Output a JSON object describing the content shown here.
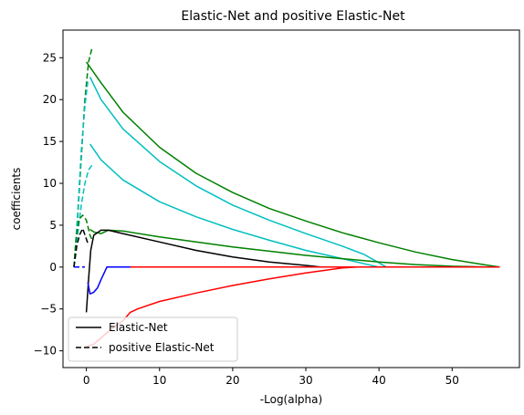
{
  "chart_data": {
    "type": "line",
    "title": "Elastic-Net and positive Elastic-Net",
    "xlabel": "-Log(alpha)",
    "ylabel": "coefficients",
    "xlim": [
      -3.2,
      59.2
    ],
    "ylim": [
      -12,
      28.3
    ],
    "xticks": [
      0,
      10,
      20,
      30,
      40,
      50
    ],
    "yticks": [
      -10,
      -5,
      0,
      5,
      10,
      15,
      20,
      25
    ],
    "grid": false,
    "legend": {
      "placement": "lower-left",
      "entries": [
        {
          "label": "Elastic-Net",
          "dash": "solid"
        },
        {
          "label": "positive Elastic-Net",
          "dash": "dashed"
        }
      ]
    },
    "series": [
      {
        "color": "#008000",
        "dash": "solid",
        "points": [
          [
            0,
            24.5
          ],
          [
            2,
            22
          ],
          [
            5,
            18.5
          ],
          [
            10,
            14.3
          ],
          [
            15,
            11.2
          ],
          [
            20,
            8.9
          ],
          [
            25,
            7.0
          ],
          [
            30,
            5.5
          ],
          [
            35,
            4.1
          ],
          [
            40,
            2.9
          ],
          [
            45,
            1.8
          ],
          [
            50,
            0.9
          ],
          [
            55,
            0.2
          ],
          [
            56.5,
            0
          ]
        ]
      },
      {
        "color": "#00BFBF",
        "dash": "solid",
        "points": [
          [
            0.5,
            22.7
          ],
          [
            2,
            20
          ],
          [
            5,
            16.5
          ],
          [
            10,
            12.6
          ],
          [
            15,
            9.7
          ],
          [
            20,
            7.4
          ],
          [
            25,
            5.6
          ],
          [
            30,
            4.0
          ],
          [
            35,
            2.5
          ],
          [
            38,
            1.5
          ],
          [
            40,
            0.5
          ],
          [
            41,
            0
          ]
        ]
      },
      {
        "color": "#00BFBF",
        "dash": "solid",
        "points": [
          [
            0.5,
            14.7
          ],
          [
            2,
            12.8
          ],
          [
            5,
            10.4
          ],
          [
            10,
            7.8
          ],
          [
            15,
            6.0
          ],
          [
            20,
            4.5
          ],
          [
            25,
            3.2
          ],
          [
            30,
            2.0
          ],
          [
            35,
            1.0
          ],
          [
            38,
            0.4
          ],
          [
            40,
            0
          ]
        ]
      },
      {
        "color": "#008000",
        "dash": "solid",
        "points": [
          [
            0.5,
            4.5
          ],
          [
            1,
            4.2
          ],
          [
            2,
            4.0
          ],
          [
            3,
            4.4
          ],
          [
            5,
            4.3
          ],
          [
            10,
            3.6
          ],
          [
            15,
            3.0
          ],
          [
            20,
            2.4
          ],
          [
            25,
            1.9
          ],
          [
            30,
            1.4
          ],
          [
            35,
            1.0
          ],
          [
            40,
            0.6
          ],
          [
            45,
            0.3
          ],
          [
            50,
            0.1
          ],
          [
            55,
            0
          ],
          [
            56.5,
            0
          ]
        ]
      },
      {
        "color": "#000000",
        "dash": "solid",
        "points": [
          [
            0,
            -5.4
          ],
          [
            0.3,
            -1.5
          ],
          [
            0.6,
            2
          ],
          [
            1,
            3.8
          ],
          [
            2,
            4.4
          ],
          [
            3,
            4.4
          ],
          [
            5,
            4.0
          ],
          [
            10,
            3.0
          ],
          [
            15,
            2.0
          ],
          [
            20,
            1.2
          ],
          [
            25,
            0.6
          ],
          [
            30,
            0.2
          ],
          [
            32,
            0
          ],
          [
            56.5,
            0
          ]
        ]
      },
      {
        "color": "#0000FF",
        "dash": "solid",
        "points": [
          [
            0.2,
            -1.8
          ],
          [
            0.5,
            -3.2
          ],
          [
            1,
            -3.0
          ],
          [
            1.5,
            -2.5
          ],
          [
            2,
            -1.5
          ],
          [
            2.8,
            0
          ],
          [
            56.5,
            0
          ]
        ]
      },
      {
        "color": "#FF0000",
        "dash": "solid",
        "points": [
          [
            0,
            -9.5
          ],
          [
            1,
            -9.2
          ],
          [
            3,
            -7.7
          ],
          [
            5,
            -6.4
          ],
          [
            6,
            -5.4
          ],
          [
            7,
            -5.0
          ],
          [
            10,
            -4.1
          ],
          [
            15,
            -3.1
          ],
          [
            20,
            -2.2
          ],
          [
            25,
            -1.4
          ],
          [
            30,
            -0.7
          ],
          [
            35,
            -0.1
          ],
          [
            37,
            0
          ],
          [
            56.5,
            0
          ]
        ]
      },
      {
        "color": "#FF0000",
        "dash": "solid",
        "points": [
          [
            6,
            0
          ],
          [
            56.5,
            0
          ]
        ]
      },
      {
        "color": "#008000",
        "dash": "dashed",
        "points": [
          [
            -1.7,
            0
          ],
          [
            -1.2,
            5.8
          ],
          [
            -0.7,
            13
          ],
          [
            -0.2,
            20
          ],
          [
            0.3,
            24.5
          ],
          [
            0.8,
            26.3
          ]
        ]
      },
      {
        "color": "#00BFBF",
        "dash": "dashed",
        "points": [
          [
            -1.7,
            0
          ],
          [
            -1.2,
            6.2
          ],
          [
            -0.7,
            13.8
          ],
          [
            -0.2,
            19.2
          ],
          [
            0.2,
            22.2
          ]
        ]
      },
      {
        "color": "#00BFBF",
        "dash": "dashed",
        "points": [
          [
            -1.7,
            0
          ],
          [
            -1.2,
            3.8
          ],
          [
            -0.7,
            7.4
          ],
          [
            -0.2,
            10
          ],
          [
            0.3,
            11.6
          ],
          [
            0.8,
            12.2
          ]
        ]
      },
      {
        "color": "#008000",
        "dash": "dashed",
        "points": [
          [
            -1.7,
            0
          ],
          [
            -1.4,
            3.5
          ],
          [
            -1.0,
            5.7
          ],
          [
            -0.5,
            6.2
          ],
          [
            0,
            5.6
          ],
          [
            0.5,
            3.8
          ],
          [
            0.8,
            3.2
          ]
        ]
      },
      {
        "color": "#000000",
        "dash": "dashed",
        "points": [
          [
            -1.7,
            0
          ],
          [
            -1.3,
            2.6
          ],
          [
            -0.9,
            3.9
          ],
          [
            -0.5,
            4.6
          ],
          [
            -0.1,
            3.6
          ],
          [
            0.3,
            2.6
          ]
        ]
      },
      {
        "color": "#FF0000",
        "dash": "dashed",
        "points": [
          [
            -1.7,
            0
          ],
          [
            -0.8,
            0
          ],
          [
            -0.2,
            0
          ]
        ]
      },
      {
        "color": "#0000FF",
        "dash": "dashed",
        "points": [
          [
            -1.7,
            0
          ],
          [
            -0.8,
            0
          ],
          [
            -0.2,
            0
          ]
        ]
      }
    ]
  }
}
